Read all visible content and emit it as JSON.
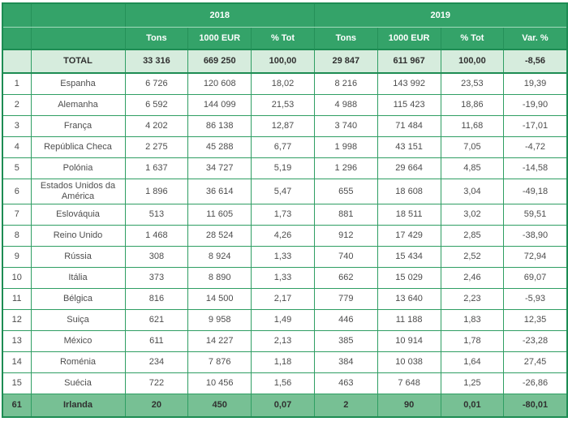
{
  "table": {
    "year_groups": [
      {
        "label": "2018",
        "colspan": 3
      },
      {
        "label": "2019",
        "colspan": 4
      }
    ],
    "column_headers": [
      "Tons",
      "1000 EUR",
      "% Tot",
      "Tons",
      "1000 EUR",
      "% Tot",
      "Var. %"
    ],
    "total_row": {
      "rank": "",
      "country": "TOTAL",
      "values": [
        "33 316",
        "669 250",
        "100,00",
        "29 847",
        "611 967",
        "100,00",
        "-8,56"
      ]
    },
    "rows": [
      {
        "rank": "1",
        "country": "Espanha",
        "values": [
          "6 726",
          "120 608",
          "18,02",
          "8 216",
          "143 992",
          "23,53",
          "19,39"
        ]
      },
      {
        "rank": "2",
        "country": "Alemanha",
        "values": [
          "6 592",
          "144 099",
          "21,53",
          "4 988",
          "115 423",
          "18,86",
          "-19,90"
        ]
      },
      {
        "rank": "3",
        "country": "França",
        "values": [
          "4 202",
          "86 138",
          "12,87",
          "3 740",
          "71 484",
          "11,68",
          "-17,01"
        ]
      },
      {
        "rank": "4",
        "country": "República Checa",
        "values": [
          "2 275",
          "45 288",
          "6,77",
          "1 998",
          "43 151",
          "7,05",
          "-4,72"
        ]
      },
      {
        "rank": "5",
        "country": "Polónia",
        "values": [
          "1 637",
          "34 727",
          "5,19",
          "1 296",
          "29 664",
          "4,85",
          "-14,58"
        ]
      },
      {
        "rank": "6",
        "country": "Estados Unidos da América",
        "values": [
          "1 896",
          "36 614",
          "5,47",
          "655",
          "18 608",
          "3,04",
          "-49,18"
        ]
      },
      {
        "rank": "7",
        "country": "Eslováquia",
        "values": [
          "513",
          "11 605",
          "1,73",
          "881",
          "18 511",
          "3,02",
          "59,51"
        ]
      },
      {
        "rank": "8",
        "country": "Reino Unido",
        "values": [
          "1 468",
          "28 524",
          "4,26",
          "912",
          "17 429",
          "2,85",
          "-38,90"
        ]
      },
      {
        "rank": "9",
        "country": "Rússia",
        "values": [
          "308",
          "8 924",
          "1,33",
          "740",
          "15 434",
          "2,52",
          "72,94"
        ]
      },
      {
        "rank": "10",
        "country": "Itália",
        "values": [
          "373",
          "8 890",
          "1,33",
          "662",
          "15 029",
          "2,46",
          "69,07"
        ]
      },
      {
        "rank": "11",
        "country": "Bélgica",
        "values": [
          "816",
          "14 500",
          "2,17",
          "779",
          "13 640",
          "2,23",
          "-5,93"
        ]
      },
      {
        "rank": "12",
        "country": "Suiça",
        "values": [
          "621",
          "9 958",
          "1,49",
          "446",
          "11 188",
          "1,83",
          "12,35"
        ]
      },
      {
        "rank": "13",
        "country": "México",
        "values": [
          "611",
          "14 227",
          "2,13",
          "385",
          "10 914",
          "1,78",
          "-23,28"
        ]
      },
      {
        "rank": "14",
        "country": "Roménia",
        "values": [
          "234",
          "7 876",
          "1,18",
          "384",
          "10 038",
          "1,64",
          "27,45"
        ]
      },
      {
        "rank": "15",
        "country": "Suécia",
        "values": [
          "722",
          "10 456",
          "1,56",
          "463",
          "7 648",
          "1,25",
          "-26,86"
        ]
      }
    ],
    "footer_row": {
      "rank": "61",
      "country": "Irlanda",
      "values": [
        "20",
        "450",
        "0,07",
        "2",
        "90",
        "0,01",
        "-80,01"
      ]
    }
  },
  "colors": {
    "header_green": "#34a369",
    "header_divider": "#259159",
    "header_light_line": "#a2d9bc",
    "body_border": "#2f9e63",
    "outer_border": "#1d8c53",
    "total_row_bg": "#d6ecdd",
    "footer_row_bg": "#77c094",
    "body_text": "#4d4d4d",
    "strong_text": "#303030"
  }
}
